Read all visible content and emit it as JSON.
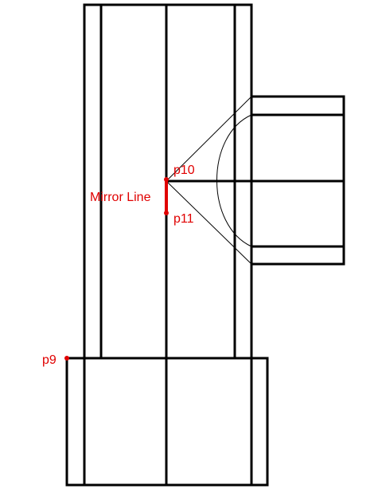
{
  "annotations": {
    "color": "#e00000",
    "points": {
      "p9": "p9",
      "p10": "p10",
      "p11": "p11"
    },
    "mirror_line_label": "Mirror Line"
  },
  "line_color": "#000000",
  "background": "#ffffff"
}
